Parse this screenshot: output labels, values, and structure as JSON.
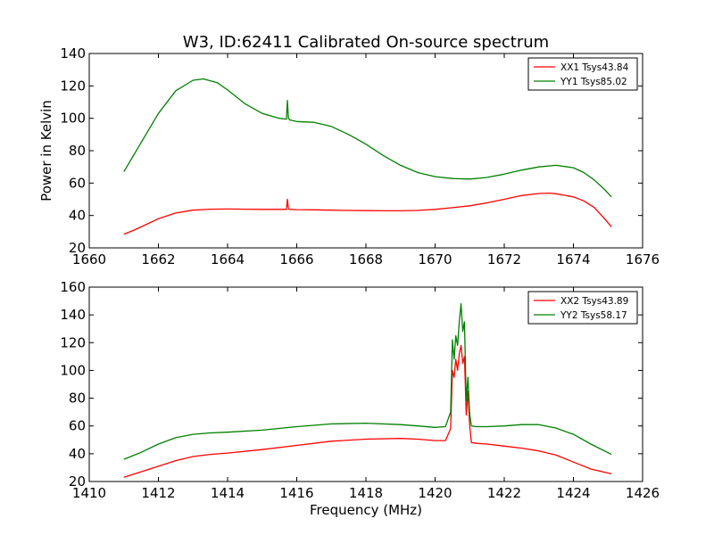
{
  "title": "W3, ID:62411 Calibrated On-source spectrum",
  "chart_data": [
    {
      "type": "line",
      "title": "W3, ID:62411 Calibrated On-source spectrum",
      "xlabel": "",
      "ylabel": "Power in Kelvin",
      "xlim": [
        1660,
        1676
      ],
      "ylim": [
        20,
        140
      ],
      "xticks": [
        1660,
        1662,
        1664,
        1666,
        1668,
        1670,
        1672,
        1674,
        1676
      ],
      "yticks": [
        20,
        40,
        60,
        80,
        100,
        120,
        140
      ],
      "grid": false,
      "legend_position": "top-right",
      "series": [
        {
          "name": "XX1 Tsys43.84",
          "color": "#ff0000",
          "x": [
            1661.0,
            1661.3,
            1661.6,
            1662.0,
            1662.5,
            1663.0,
            1663.5,
            1664.0,
            1664.5,
            1665.0,
            1665.5,
            1665.7,
            1665.73,
            1665.76,
            1665.8,
            1666.0,
            1666.5,
            1667.0,
            1667.5,
            1668.0,
            1668.5,
            1669.0,
            1669.5,
            1670.0,
            1670.5,
            1671.0,
            1671.5,
            1672.0,
            1672.5,
            1673.0,
            1673.3,
            1673.5,
            1674.0,
            1674.3,
            1674.6,
            1674.9,
            1675.1
          ],
          "y": [
            28.5,
            31.0,
            34.0,
            38.0,
            41.5,
            43.3,
            43.9,
            44.0,
            43.9,
            43.8,
            43.8,
            43.8,
            50.0,
            44.0,
            43.8,
            43.6,
            43.5,
            43.3,
            43.1,
            43.0,
            42.9,
            42.9,
            43.1,
            43.8,
            44.8,
            46.0,
            47.8,
            50.0,
            52.3,
            53.6,
            53.8,
            53.4,
            51.5,
            49.0,
            45.0,
            38.0,
            33.0
          ]
        },
        {
          "name": "YY1 Tsys85.02",
          "color": "#008000",
          "x": [
            1661.0,
            1661.5,
            1662.0,
            1662.5,
            1663.0,
            1663.3,
            1663.7,
            1664.0,
            1664.5,
            1665.0,
            1665.5,
            1665.7,
            1665.73,
            1665.76,
            1665.8,
            1666.0,
            1666.5,
            1667.0,
            1667.5,
            1668.0,
            1668.5,
            1669.0,
            1669.5,
            1670.0,
            1670.5,
            1671.0,
            1671.5,
            1672.0,
            1672.5,
            1673.0,
            1673.5,
            1674.0,
            1674.3,
            1674.6,
            1674.9,
            1675.1
          ],
          "y": [
            67.0,
            85.0,
            103.0,
            117.0,
            123.5,
            124.3,
            122.0,
            117.5,
            109.0,
            103.0,
            100.0,
            99.5,
            111.0,
            100.0,
            99.0,
            98.0,
            97.5,
            95.0,
            90.0,
            84.0,
            77.0,
            71.0,
            66.5,
            64.0,
            62.8,
            62.5,
            63.5,
            65.5,
            68.0,
            70.0,
            71.0,
            69.5,
            66.5,
            62.0,
            56.0,
            51.5
          ]
        }
      ]
    },
    {
      "type": "line",
      "title": "",
      "xlabel": "Frequency (MHz)",
      "ylabel": "",
      "xlim": [
        1410,
        1426
      ],
      "ylim": [
        20,
        160
      ],
      "xticks": [
        1410,
        1412,
        1414,
        1416,
        1418,
        1420,
        1422,
        1424,
        1426
      ],
      "yticks": [
        20,
        40,
        60,
        80,
        100,
        120,
        140,
        160
      ],
      "grid": false,
      "legend_position": "top-right",
      "series": [
        {
          "name": "XX2 Tsys43.89",
          "color": "#ff0000",
          "x": [
            1411.0,
            1411.5,
            1412.0,
            1412.5,
            1413.0,
            1413.5,
            1414.0,
            1415.0,
            1416.0,
            1417.0,
            1418.0,
            1419.0,
            1419.5,
            1420.0,
            1420.3,
            1420.45,
            1420.5,
            1420.55,
            1420.6,
            1420.65,
            1420.7,
            1420.75,
            1420.8,
            1420.85,
            1420.9,
            1420.95,
            1421.0,
            1421.05,
            1421.2,
            1421.5,
            1422.0,
            1422.5,
            1423.0,
            1423.5,
            1424.0,
            1424.5,
            1425.1
          ],
          "y": [
            23.0,
            27.0,
            31.0,
            35.0,
            38.0,
            39.5,
            40.5,
            43.0,
            46.0,
            49.0,
            50.5,
            51.0,
            50.5,
            49.5,
            49.5,
            58.0,
            100.0,
            95.0,
            108.0,
            100.0,
            112.0,
            118.0,
            105.0,
            110.0,
            68.0,
            85.0,
            60.0,
            48.0,
            47.5,
            47.0,
            45.5,
            44.0,
            42.0,
            39.0,
            34.0,
            29.0,
            25.5
          ]
        },
        {
          "name": "YY2 Tsys58.17",
          "color": "#008000",
          "x": [
            1411.0,
            1411.5,
            1412.0,
            1412.5,
            1413.0,
            1413.5,
            1414.0,
            1415.0,
            1416.0,
            1417.0,
            1418.0,
            1419.0,
            1419.5,
            1420.0,
            1420.3,
            1420.45,
            1420.5,
            1420.55,
            1420.6,
            1420.65,
            1420.7,
            1420.75,
            1420.8,
            1420.85,
            1420.9,
            1420.95,
            1421.0,
            1421.05,
            1421.2,
            1421.5,
            1422.0,
            1422.5,
            1423.0,
            1423.5,
            1424.0,
            1424.5,
            1425.1
          ],
          "y": [
            36.0,
            41.0,
            47.0,
            51.5,
            54.0,
            55.0,
            55.5,
            57.0,
            59.5,
            61.5,
            62.0,
            61.0,
            60.0,
            59.0,
            59.5,
            70.0,
            122.0,
            108.0,
            125.0,
            118.0,
            135.0,
            148.0,
            128.0,
            135.0,
            78.0,
            95.0,
            68.0,
            60.0,
            59.5,
            59.5,
            60.0,
            61.0,
            61.0,
            58.5,
            54.0,
            47.0,
            39.5
          ]
        }
      ]
    }
  ]
}
